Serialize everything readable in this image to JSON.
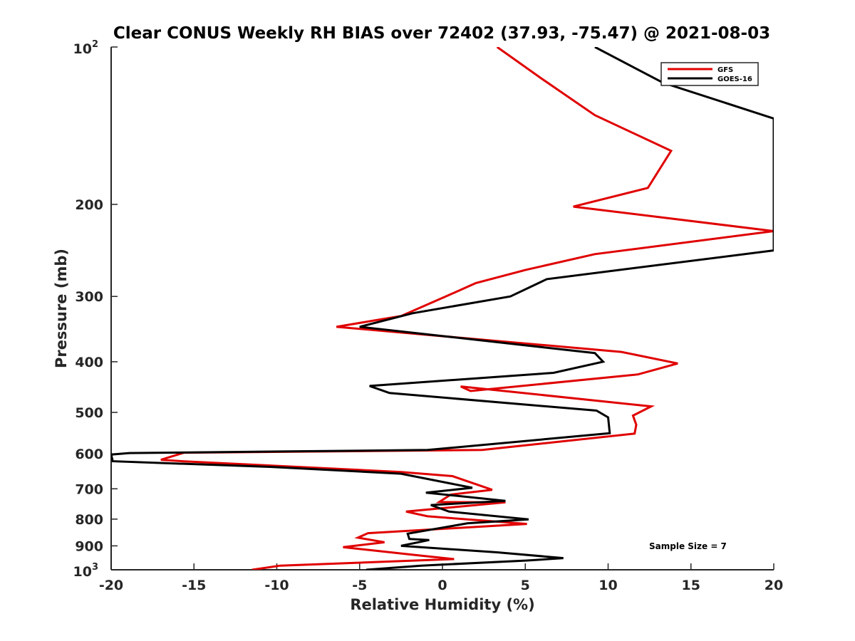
{
  "chart_data": {
    "type": "line",
    "title": "Clear CONUS Weekly RH BIAS over 72402 (37.93, -75.47) @ 2021-08-03",
    "xlabel": "Relative Humidity (%)",
    "ylabel": "Pressure (mb)",
    "xlim": [
      -20,
      20
    ],
    "ylim": [
      100,
      1000
    ],
    "yscale": "log",
    "y_reversed": true,
    "xticks": [
      -20,
      -15,
      -10,
      -5,
      0,
      5,
      10,
      15,
      20
    ],
    "xtick_labels": [
      "-20",
      "-15",
      "-10",
      "-5",
      "0",
      "5",
      "10",
      "15",
      "20"
    ],
    "yticks": [
      200,
      300,
      400,
      500,
      600,
      700,
      800,
      900
    ],
    "ytick_labels": [
      "200",
      "300",
      "400",
      "500",
      "600",
      "700",
      "800",
      "900"
    ],
    "y_edge_labels": {
      "top": {
        "base": "10",
        "exp": "2"
      },
      "bottom": {
        "base": "10",
        "exp": "3"
      }
    },
    "legend_position": "top-right",
    "annotation": "Sample Size = 7",
    "grid": false,
    "series": [
      {
        "name": "GFS",
        "color": "#e00000",
        "points": [
          [
            3.3,
            100
          ],
          [
            6.0,
            115
          ],
          [
            9.2,
            135
          ],
          [
            13.8,
            158
          ],
          [
            12.4,
            186
          ],
          [
            7.9,
            202
          ],
          [
            20.0,
            225
          ],
          [
            9.2,
            249
          ],
          [
            5.0,
            267
          ],
          [
            2.0,
            283
          ],
          [
            0.1,
            301
          ],
          [
            -2.5,
            327
          ],
          [
            -4.0,
            333
          ],
          [
            -6.4,
            343
          ],
          [
            10.8,
            383
          ],
          [
            14.2,
            403
          ],
          [
            11.8,
            423
          ],
          [
            1.7,
            455
          ],
          [
            1.1,
            446
          ],
          [
            12.6,
            487
          ],
          [
            11.5,
            507
          ],
          [
            11.7,
            528
          ],
          [
            11.6,
            549
          ],
          [
            2.4,
            590
          ],
          [
            -15.6,
            597
          ],
          [
            -17.0,
            616
          ],
          [
            -15.7,
            620
          ],
          [
            -2.5,
            650
          ],
          [
            0.6,
            662
          ],
          [
            3.0,
            703
          ],
          [
            0.5,
            718
          ],
          [
            -0.2,
            742
          ],
          [
            3.8,
            743
          ],
          [
            -2.2,
            774
          ],
          [
            -0.9,
            790
          ],
          [
            5.1,
            817
          ],
          [
            -4.5,
            851
          ],
          [
            -5.1,
            868
          ],
          [
            -3.5,
            886
          ],
          [
            -6.0,
            905
          ],
          [
            -1.5,
            938
          ],
          [
            0.7,
            954
          ],
          [
            -9.8,
            982
          ],
          [
            -11.5,
            1000
          ]
        ]
      },
      {
        "name": "GOES-16",
        "color": "#000000",
        "points": [
          [
            9.2,
            100
          ],
          [
            13.3,
            117
          ],
          [
            20.0,
            137
          ],
          [
            20.0,
            245
          ],
          [
            6.3,
            278
          ],
          [
            4.1,
            300
          ],
          [
            -1.8,
            323
          ],
          [
            -5.0,
            343
          ],
          [
            9.2,
            385
          ],
          [
            9.7,
            400
          ],
          [
            6.7,
            420
          ],
          [
            -4.4,
            445
          ],
          [
            -3.2,
            459
          ],
          [
            9.3,
            496
          ],
          [
            10.0,
            511
          ],
          [
            10.1,
            548
          ],
          [
            -0.9,
            590
          ],
          [
            -18.9,
            598
          ],
          [
            -20.0,
            602
          ],
          [
            -19.9,
            620
          ],
          [
            -10.2,
            636
          ],
          [
            -2.5,
            655
          ],
          [
            1.8,
            697
          ],
          [
            -1.0,
            712
          ],
          [
            3.8,
            738
          ],
          [
            -0.7,
            752
          ],
          [
            0.4,
            774
          ],
          [
            5.2,
            801
          ],
          [
            1.5,
            815
          ],
          [
            -2.1,
            853
          ],
          [
            -2.0,
            873
          ],
          [
            -0.8,
            877
          ],
          [
            -2.5,
            900
          ],
          [
            3.3,
            926
          ],
          [
            7.3,
            950
          ],
          [
            5.1,
            960
          ],
          [
            -1.3,
            982
          ],
          [
            -4.6,
            1000
          ]
        ]
      }
    ]
  }
}
